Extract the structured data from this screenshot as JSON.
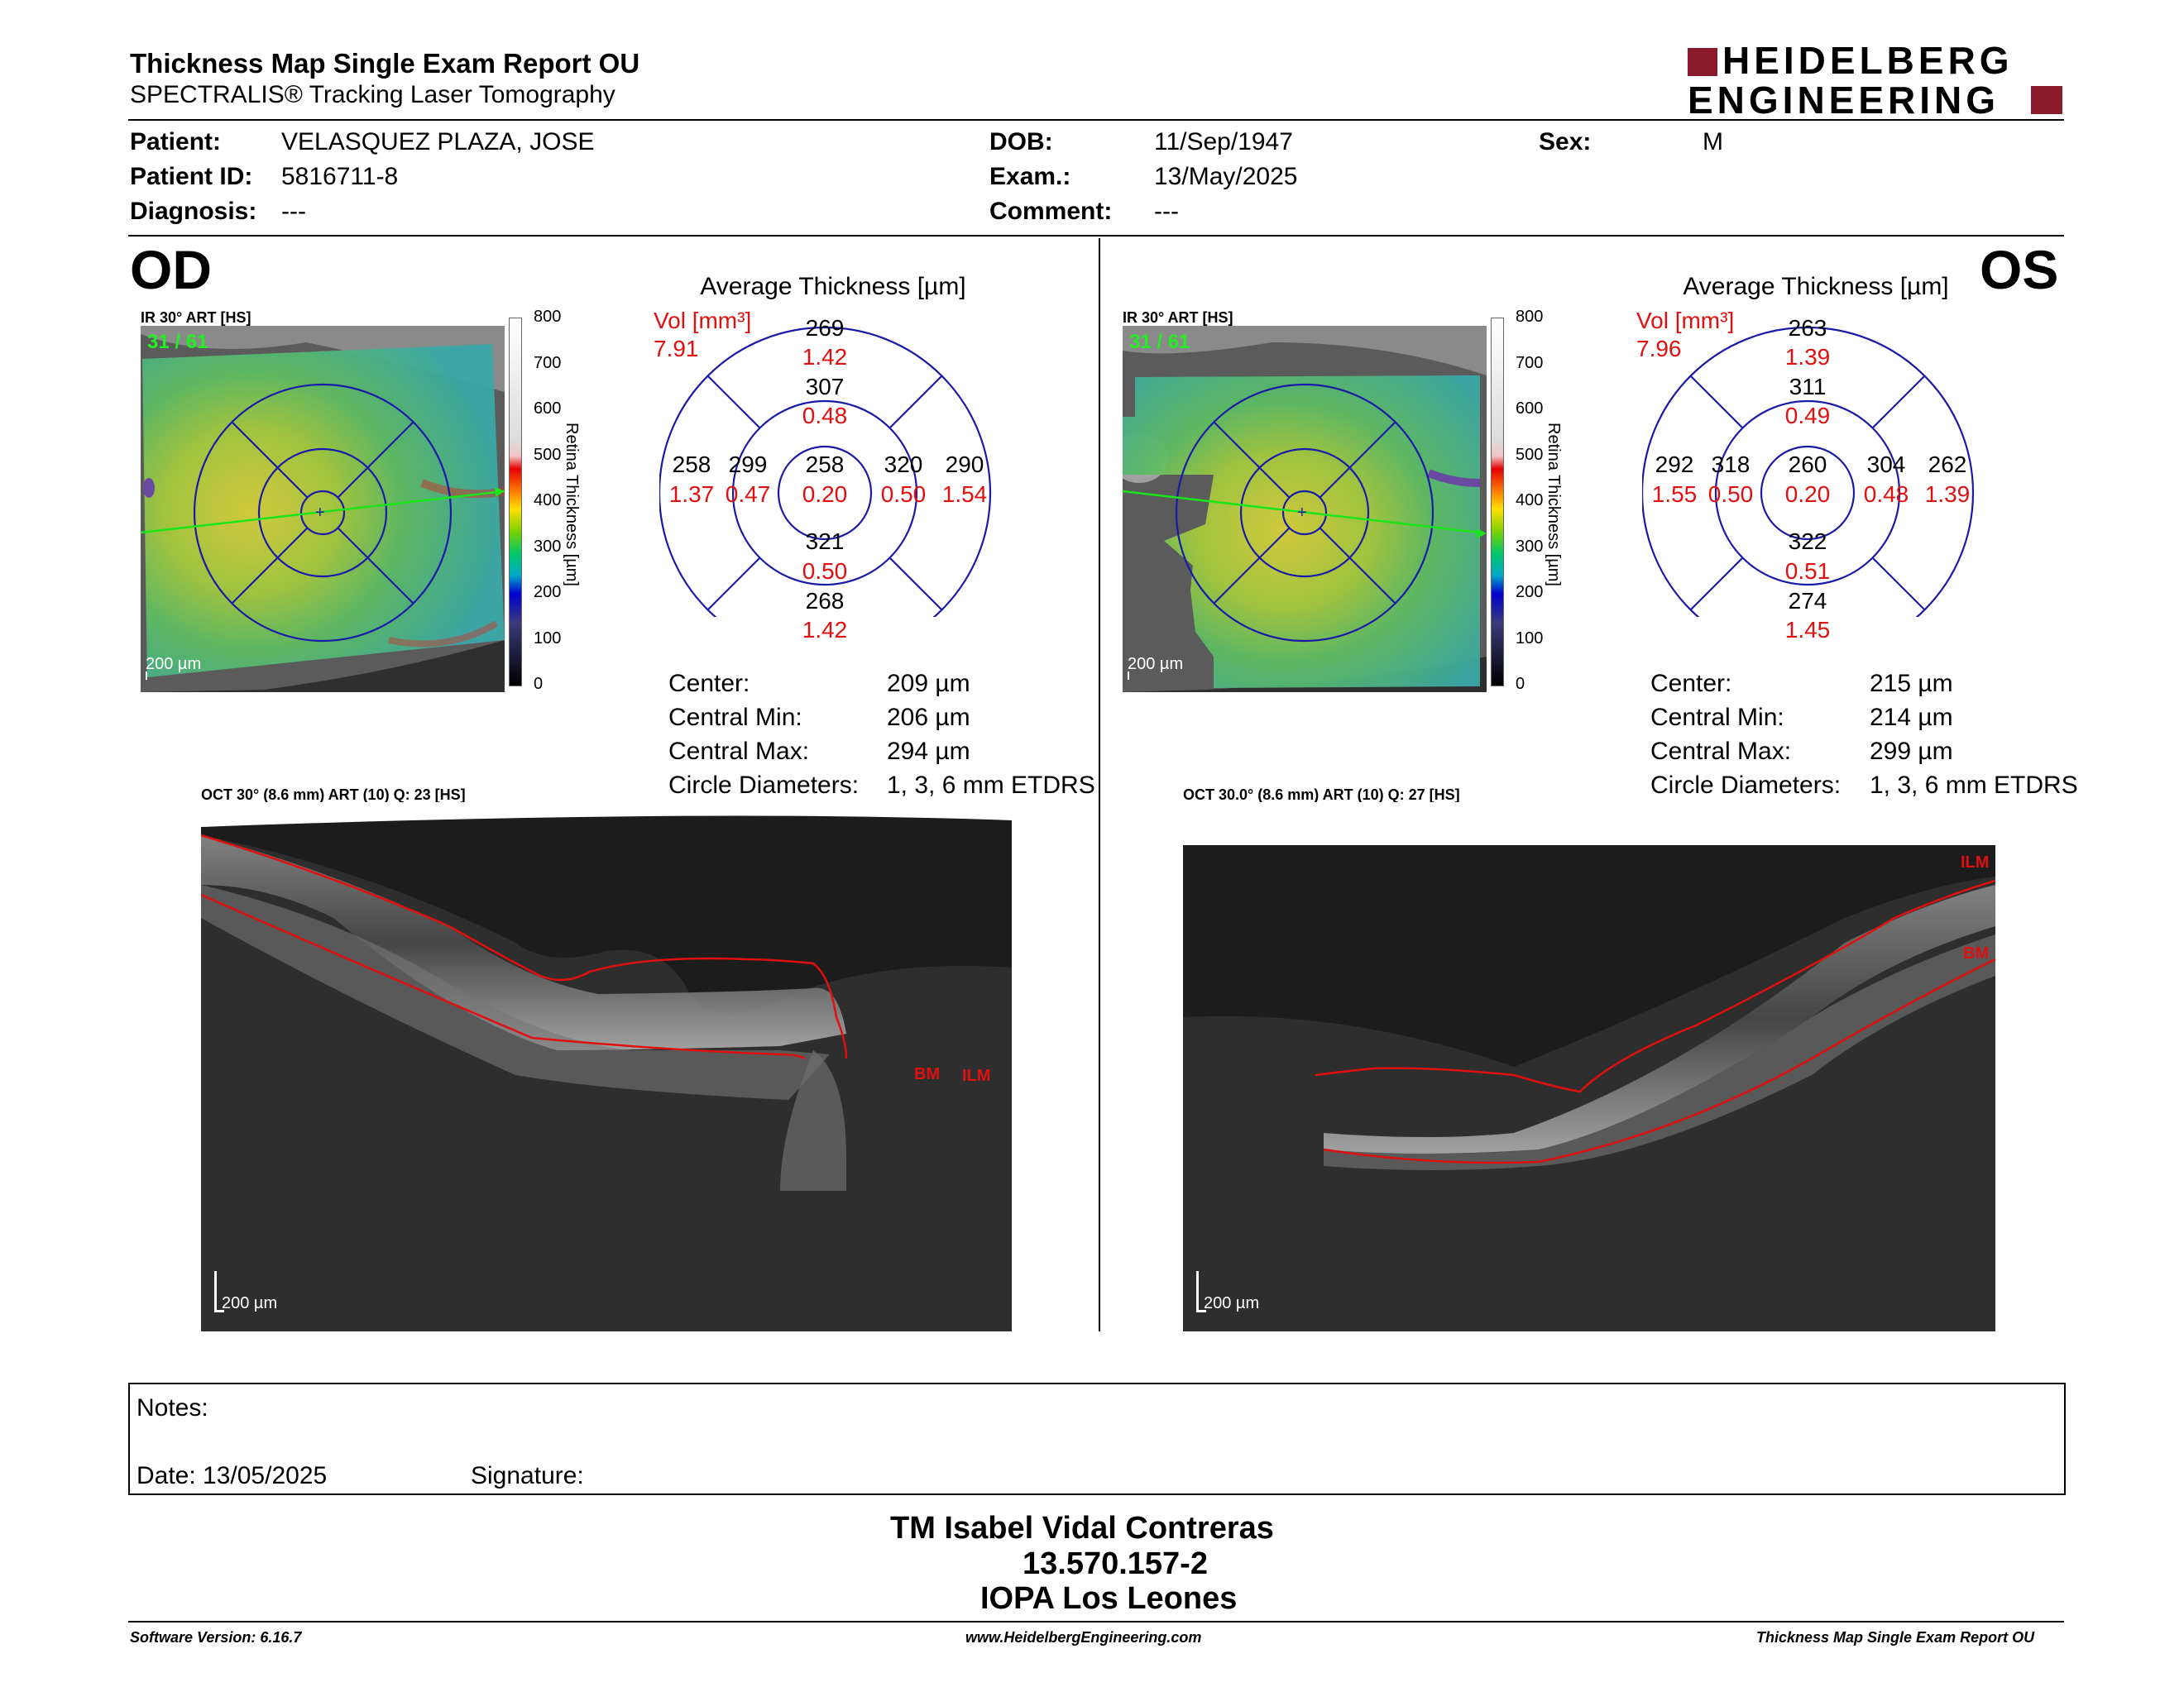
{
  "header": {
    "title": "Thickness Map Single Exam Report OU",
    "subtitle": "SPECTRALIS® Tracking Laser Tomography",
    "logo_line1": "HEIDELBERG",
    "logo_line2": "ENGINEERING"
  },
  "patient": {
    "patient_label": "Patient:",
    "patient_value": "VELASQUEZ PLAZA, JOSE",
    "id_label": "Patient ID:",
    "id_value": "5816711-8",
    "diagnosis_label": "Diagnosis:",
    "diagnosis_value": "---",
    "dob_label": "DOB:",
    "dob_value": "11/Sep/1947",
    "exam_label": "Exam.:",
    "exam_value": "13/May/2025",
    "comment_label": "Comment:",
    "comment_value": "---",
    "sex_label": "Sex:",
    "sex_value": "M"
  },
  "od": {
    "eye": "OD",
    "ir_title": "IR 30° ART [HS]",
    "frames": "31 / 61",
    "ir_scale": "200 µm",
    "avg_title": "Average Thickness [µm]",
    "vol_label": "Vol [mm³]",
    "vol_value": "7.91",
    "sectors": {
      "outer_sup": [
        "269",
        "1.42"
      ],
      "inner_sup": [
        "307",
        "0.48"
      ],
      "outer_temp": [
        "258",
        "1.37"
      ],
      "inner_temp": [
        "299",
        "0.47"
      ],
      "center": [
        "258",
        "0.20"
      ],
      "inner_nas": [
        "320",
        "0.50"
      ],
      "outer_nas": [
        "290",
        "1.54"
      ],
      "inner_inf": [
        "321",
        "0.50"
      ],
      "outer_inf": [
        "268",
        "1.42"
      ]
    },
    "stats": [
      {
        "label": "Center:",
        "value": "209 µm"
      },
      {
        "label": "Central Min:",
        "value": "206 µm"
      },
      {
        "label": "Central Max:",
        "value": "294 µm"
      },
      {
        "label": "Circle Diameters:",
        "value": "1, 3, 6 mm ETDRS"
      }
    ],
    "oct_title": "OCT 30° (8.6 mm) ART (10) Q: 23 [HS]",
    "oct_scale": "200 µm",
    "bm": "BM",
    "ilm": "ILM"
  },
  "os": {
    "eye": "OS",
    "ir_title": "IR 30° ART [HS]",
    "frames": "31 / 61",
    "ir_scale": "200 µm",
    "avg_title": "Average Thickness [µm]",
    "vol_label": "Vol [mm³]",
    "vol_value": "7.96",
    "sectors": {
      "outer_sup": [
        "263",
        "1.39"
      ],
      "inner_sup": [
        "311",
        "0.49"
      ],
      "outer_temp": [
        "292",
        "1.55"
      ],
      "inner_temp": [
        "318",
        "0.50"
      ],
      "center": [
        "260",
        "0.20"
      ],
      "inner_nas": [
        "304",
        "0.48"
      ],
      "outer_nas": [
        "262",
        "1.39"
      ],
      "inner_inf": [
        "322",
        "0.51"
      ],
      "outer_inf": [
        "274",
        "1.45"
      ]
    },
    "stats": [
      {
        "label": "Center:",
        "value": "215 µm"
      },
      {
        "label": "Central Min:",
        "value": "214 µm"
      },
      {
        "label": "Central Max:",
        "value": "299 µm"
      },
      {
        "label": "Circle Diameters:",
        "value": "1, 3, 6 mm ETDRS"
      }
    ],
    "oct_title": "OCT 30.0° (8.6 mm) ART (10) Q: 27 [HS]",
    "oct_scale": "200 µm",
    "bm": "BM",
    "ilm": "ILM"
  },
  "colorbar": {
    "ticks": [
      "800",
      "700",
      "600",
      "500",
      "400",
      "300",
      "200",
      "100",
      "0"
    ],
    "axis_label": "Retina Thickness [µm]"
  },
  "notes": {
    "notes_label": "Notes:",
    "date_label": "Date: 13/05/2025",
    "signature_label": "Signature:"
  },
  "signer": {
    "name": "TM Isabel Vidal Contreras",
    "rut": "13.570.157-2",
    "institution": "IOPA Los Leones"
  },
  "footer": {
    "software": "Software Version: 6.16.7",
    "website": "www.HeidelbergEngineering.com",
    "report": "Thickness Map Single Exam Report OU"
  },
  "colors": {
    "accent_red": "#e01010",
    "logo_red": "#8b1a2b",
    "grid_blue": "#1a1aa8"
  }
}
